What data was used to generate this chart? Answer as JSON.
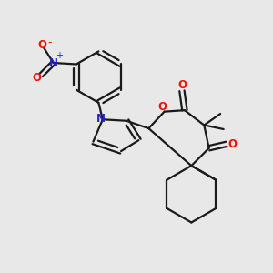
{
  "bg_color": "#e8e8e8",
  "bond_color": "#1a1a1a",
  "o_color": "#ee1100",
  "n_color": "#2222cc",
  "figsize": [
    3.0,
    3.0
  ],
  "dpi": 100,
  "xlim": [
    0,
    10
  ],
  "ylim": [
    0,
    10
  ]
}
